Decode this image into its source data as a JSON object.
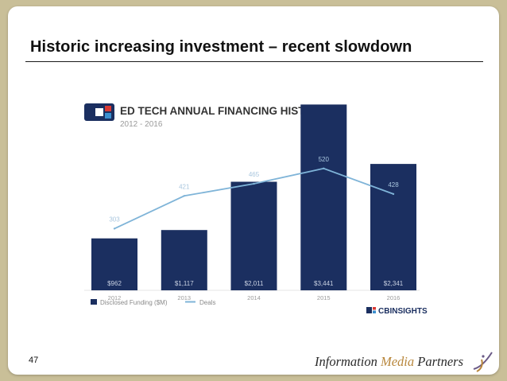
{
  "slide": {
    "title": "Historic increasing investment – recent slowdown",
    "page_number": "47",
    "footer_brand": {
      "prefix": "Information ",
      "highlight": "Media",
      "suffix": " Partners"
    }
  },
  "colors": {
    "bar": "#1b2f60",
    "line": "#7fb4d8",
    "slide_border": "#c9bf98",
    "brand_accent": "#b8863b"
  },
  "chart_data": {
    "type": "bar",
    "title": "ED TECH ANNUAL FINANCING HISTORY",
    "subtitle": "2012 - 2016",
    "categories": [
      "2012",
      "2013",
      "2014",
      "2015",
      "2016"
    ],
    "series": [
      {
        "name": "Disclosed Funding ($M)",
        "type": "bar",
        "values": [
          962,
          1117,
          2011,
          3441,
          2341
        ],
        "labels": [
          "$962",
          "$1,117",
          "$2,011",
          "$3,441",
          "$2,341"
        ]
      },
      {
        "name": "Deals",
        "type": "line",
        "values": [
          303,
          421,
          465,
          520,
          428
        ],
        "labels": [
          "303",
          "421",
          "465",
          "520",
          "428"
        ]
      }
    ],
    "grid": false,
    "legend_placement": "bottom-left",
    "source_logo": "CBINSIGHTS",
    "logo_icon": "cb-insights-logo-icon"
  }
}
